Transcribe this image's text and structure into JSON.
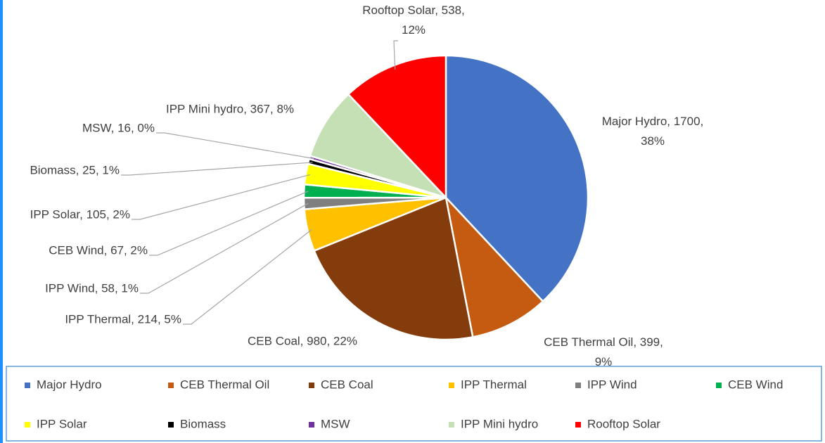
{
  "chart_data": {
    "type": "pie",
    "categories": [
      "Major Hydro",
      "CEB Thermal Oil",
      "CEB Coal",
      "IPP Thermal",
      "IPP Wind",
      "CEB Wind",
      "IPP Solar",
      "Biomass",
      "MSW",
      "IPP Mini hydro",
      "Rooftop Solar"
    ],
    "values": [
      1700,
      399,
      980,
      214,
      58,
      67,
      105,
      25,
      16,
      367,
      538
    ],
    "value_labels": [
      "Major Hydro, 1700, 38%",
      "CEB Thermal Oil, 399, 9%",
      "CEB Coal, 980, 22%",
      "IPP Thermal, 214, 5%",
      "IPP Wind, 58, 1%",
      "CEB Wind, 67, 2%",
      "IPP Solar, 105, 2%",
      "Biomass, 25, 1%",
      "MSW, 16, 0%",
      "IPP Mini hydro, 367, 8%",
      "Rooftop Solar, 538, 12%"
    ],
    "colors": [
      "#4472c4",
      "#c55a11",
      "#843c0c",
      "#ffc000",
      "#7f7f7f",
      "#00b050",
      "#ffff00",
      "#000000",
      "#7030a0",
      "#c5e0b4",
      "#ff0000"
    ],
    "legend": "bottom"
  }
}
